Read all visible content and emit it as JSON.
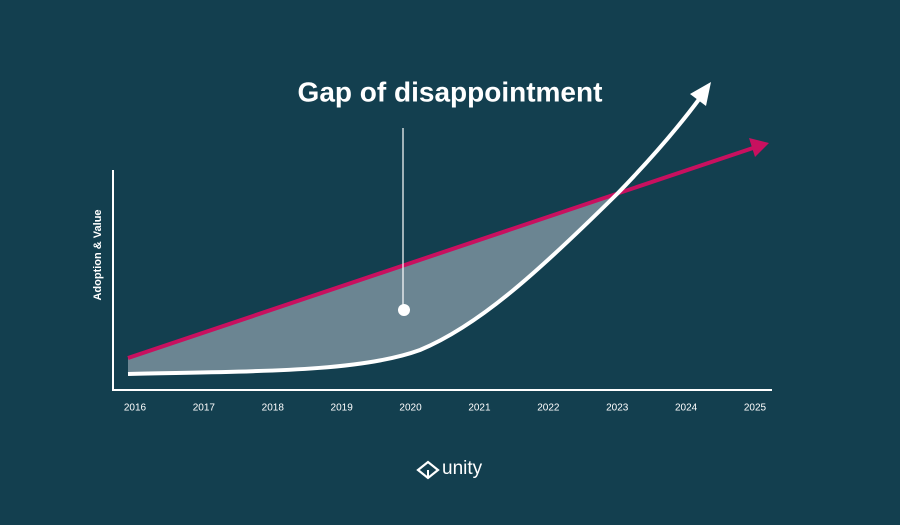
{
  "title": "Gap of disappointment",
  "y_axis_label": "Adoption & Value",
  "x_axis": {
    "labels": [
      "2016",
      "2017",
      "2018",
      "2019",
      "2020",
      "2021",
      "2022",
      "2023",
      "2024",
      "2025"
    ]
  },
  "logo": "unity"
}
